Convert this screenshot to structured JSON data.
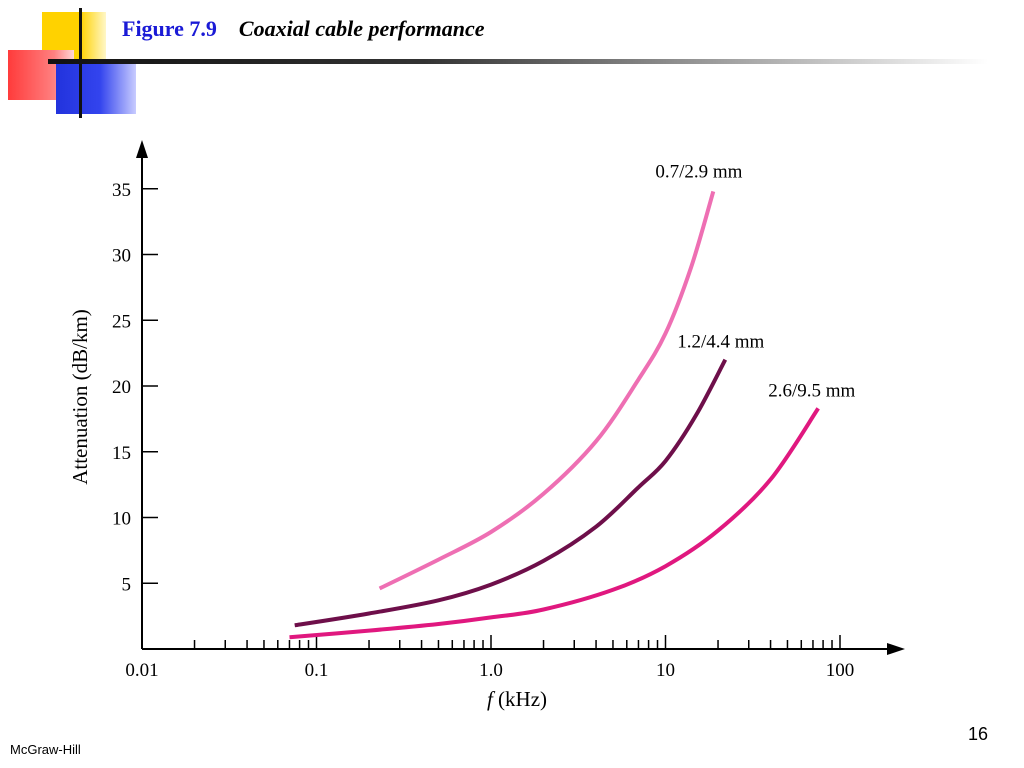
{
  "slide": {
    "title_label": "Figure 7.9",
    "title_caption": "Coaxial cable performance",
    "footer_left": "McGraw-Hill",
    "page_number": "16"
  },
  "chart_data": {
    "type": "line",
    "title": "",
    "xlabel_italic": "f",
    "xlabel_rest": " (kHz)",
    "ylabel": "Attenuation (dB/km)",
    "x_scale": "log",
    "xlim": [
      0.01,
      300
    ],
    "ylim": [
      0,
      38
    ],
    "x_ticks": [
      {
        "value": 0.01,
        "label": "0.01"
      },
      {
        "value": 0.1,
        "label": "0.1"
      },
      {
        "value": 1.0,
        "label": "1.0"
      },
      {
        "value": 10,
        "label": "10"
      },
      {
        "value": 100,
        "label": "100"
      }
    ],
    "y_ticks": [
      {
        "value": 5,
        "label": "5"
      },
      {
        "value": 10,
        "label": "10"
      },
      {
        "value": 15,
        "label": "15"
      },
      {
        "value": 20,
        "label": "20"
      },
      {
        "value": 25,
        "label": "25"
      },
      {
        "value": 30,
        "label": "30"
      },
      {
        "value": 35,
        "label": "35"
      }
    ],
    "grid": false,
    "legend": "none",
    "series": [
      {
        "name": "0.7/2.9 mm",
        "color": "#ee6fb3",
        "points": [
          [
            0.23,
            4.6
          ],
          [
            0.5,
            6.8
          ],
          [
            1.0,
            8.9
          ],
          [
            2.0,
            11.8
          ],
          [
            4.0,
            15.8
          ],
          [
            7.0,
            20.5
          ],
          [
            10,
            24.0
          ],
          [
            14,
            29.0
          ],
          [
            18.8,
            34.8
          ]
        ]
      },
      {
        "name": "1.2/4.4 mm",
        "color": "#6e0f4a",
        "points": [
          [
            0.075,
            1.8
          ],
          [
            0.2,
            2.7
          ],
          [
            0.5,
            3.7
          ],
          [
            1.0,
            4.9
          ],
          [
            2.0,
            6.7
          ],
          [
            4.0,
            9.3
          ],
          [
            7.0,
            12.3
          ],
          [
            10,
            14.3
          ],
          [
            15,
            17.8
          ],
          [
            22,
            22.0
          ]
        ]
      },
      {
        "name": "2.6/9.5 mm",
        "color": "#e0187f",
        "points": [
          [
            0.07,
            0.9
          ],
          [
            0.2,
            1.4
          ],
          [
            0.5,
            1.9
          ],
          [
            1.0,
            2.4
          ],
          [
            2.0,
            3.0
          ],
          [
            5.0,
            4.5
          ],
          [
            10,
            6.3
          ],
          [
            20,
            9.0
          ],
          [
            40,
            12.9
          ],
          [
            75,
            18.3
          ]
        ]
      }
    ]
  }
}
